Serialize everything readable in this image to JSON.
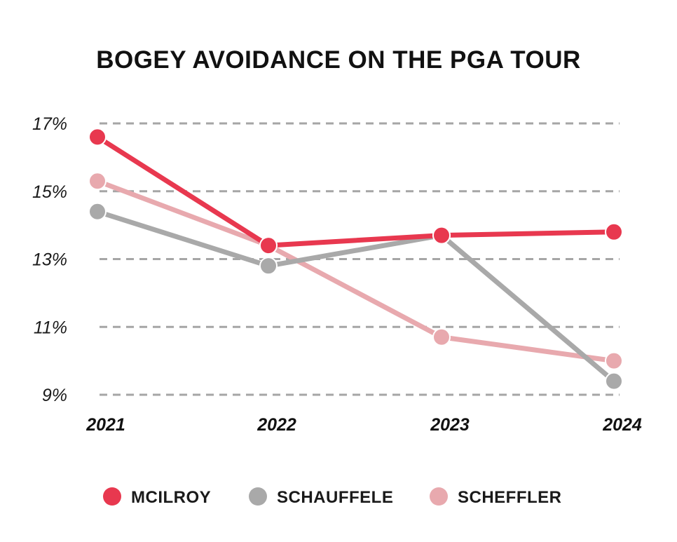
{
  "chart_data": {
    "type": "line",
    "title": "BOGEY AVOIDANCE ON THE PGA TOUR",
    "xlabel": "",
    "ylabel": "",
    "x": [
      "2021",
      "2022",
      "2023",
      "2024"
    ],
    "ylim": [
      9,
      17
    ],
    "yticks": [
      17,
      15,
      13,
      11,
      9
    ],
    "ytick_labels": [
      "17%",
      "15%",
      "13%",
      "11%",
      "9%"
    ],
    "grid": true,
    "legend_position": "bottom",
    "series": [
      {
        "name": "MCILROY",
        "color": "#e8384f",
        "values": [
          16.6,
          13.4,
          13.7,
          13.8
        ]
      },
      {
        "name": "SCHAUFFELE",
        "color": "#a9a9a9",
        "values": [
          14.4,
          12.8,
          13.7,
          9.4
        ]
      },
      {
        "name": "SCHEFFLER",
        "color": "#e8a9ae",
        "values": [
          15.3,
          13.4,
          10.7,
          10.0
        ]
      }
    ]
  }
}
